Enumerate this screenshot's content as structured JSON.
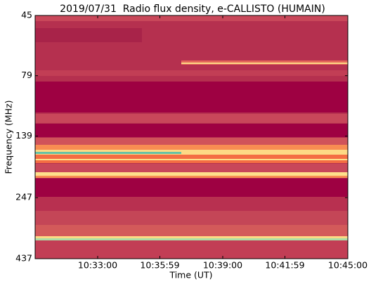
{
  "chart_data": {
    "type": "heatmap",
    "title": "2019/07/31  Radio flux density, e-CALLISTO (HUMAIN)",
    "x_label": "Time (UT)",
    "y_label": "Frequency (MHz)",
    "xlim": [
      "10:30:00",
      "10:45:00"
    ],
    "xticks": [
      "10:33:00",
      "10:35:59",
      "10:39:00",
      "10:41:59",
      "10:45:00"
    ],
    "ylim": [
      45,
      437
    ],
    "yticks": [
      45,
      79,
      139,
      247,
      437
    ],
    "y_scale": "log",
    "y_inverted": true
  }
}
